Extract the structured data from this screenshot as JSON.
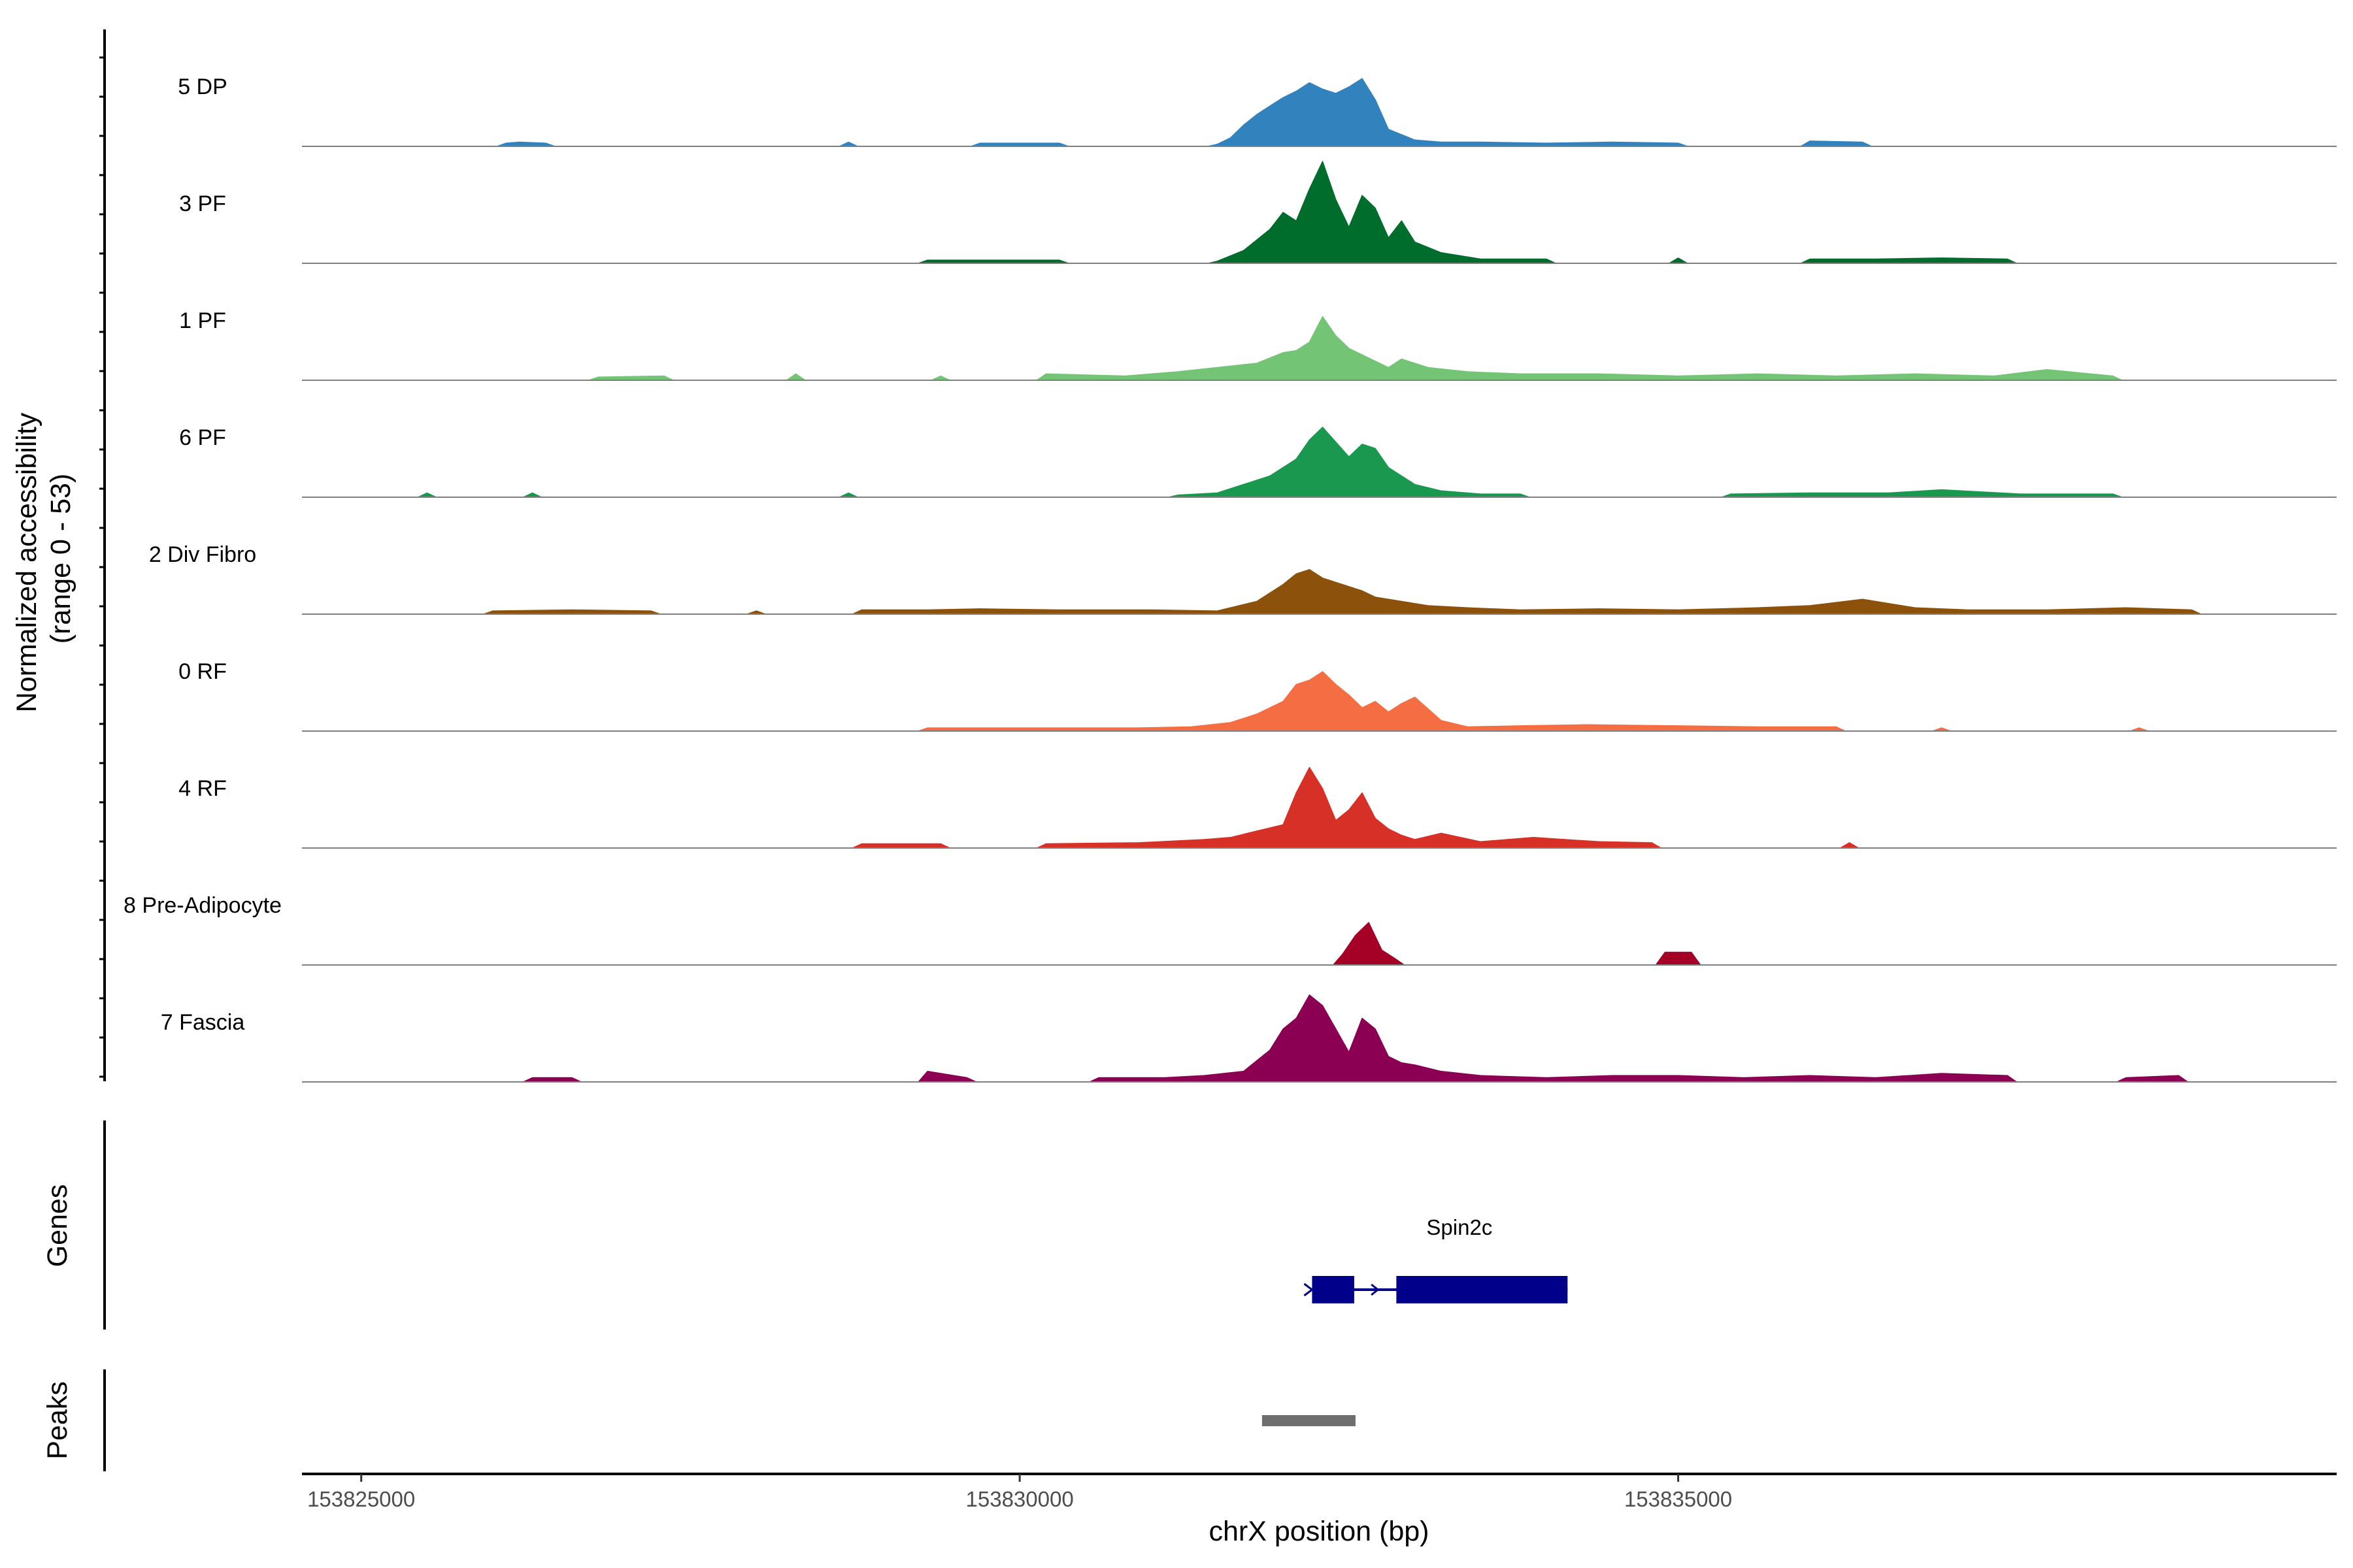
{
  "chart_data": {
    "type": "area",
    "title": "",
    "chromosome": "chrX",
    "xlabel": "chrX position (bp)",
    "xlim": [
      153824550,
      153840000
    ],
    "xticks": [
      153825000,
      153830000,
      153835000
    ],
    "xtick_labels": [
      "153825000",
      "153830000",
      "153835000"
    ],
    "ylabel": "Normalized accessibility",
    "ylabel_range": "(range 0 - 53)",
    "ylim": [
      0,
      53
    ],
    "tracks": [
      {
        "name": "5 DP",
        "color": "#3182bd",
        "positions": [
          153826100,
          153826200,
          153826400,
          153828700,
          153829700,
          153830300,
          153831500,
          153831600,
          153831700,
          153831800,
          153831900,
          153832000,
          153832100,
          153832200,
          153832300,
          153832400,
          153832500,
          153832600,
          153832700,
          153832800,
          153833000,
          153833200,
          153833500,
          153834000,
          153834500,
          153835000,
          153836000,
          153836400
        ],
        "values": [
          1.5,
          2,
          1.5,
          2,
          1.5,
          1.5,
          1,
          4,
          10,
          15,
          19,
          23,
          26,
          30,
          27,
          25,
          28,
          32,
          22,
          8,
          3,
          2,
          2,
          1.5,
          2,
          1.5,
          2.5,
          2
        ]
      },
      {
        "name": "3 PF",
        "color": "#006d2c",
        "positions": [
          153829300,
          153829700,
          153830300,
          153831500,
          153831700,
          153831900,
          153832000,
          153832100,
          153832200,
          153832300,
          153832400,
          153832500,
          153832600,
          153832700,
          153832800,
          153832900,
          153833000,
          153833200,
          153833500,
          153834000,
          153835000,
          153836000,
          153836500,
          153837000,
          153837500
        ],
        "values": [
          1.5,
          1.5,
          1.5,
          1,
          6,
          16,
          24,
          20,
          35,
          48,
          30,
          17,
          32,
          26,
          12,
          20,
          10,
          5,
          2,
          2,
          2.5,
          2,
          2,
          2.5,
          2
        ]
      },
      {
        "name": "1 PF",
        "color": "#74c476",
        "positions": [
          153826800,
          153827300,
          153828300,
          153829400,
          153830200,
          153830800,
          153831200,
          153831500,
          153831800,
          153832000,
          153832100,
          153832200,
          153832300,
          153832400,
          153832500,
          153832600,
          153832700,
          153832800,
          153832900,
          153833100,
          153833400,
          153833800,
          153834400,
          153835000,
          153835600,
          153836200,
          153836800,
          153837400,
          153837800,
          153838300
        ],
        "values": [
          1.5,
          2,
          3,
          2,
          3,
          2,
          4,
          6,
          8,
          13,
          14,
          18,
          30,
          21,
          15,
          12,
          9,
          6,
          10,
          6,
          4,
          3,
          3,
          2,
          3,
          2,
          3,
          2,
          5,
          2
        ]
      },
      {
        "name": "6 PF",
        "color": "#1a9850",
        "positions": [
          153825500,
          153826300,
          153828700,
          153831200,
          153831500,
          153831700,
          153831900,
          153832100,
          153832200,
          153832300,
          153832400,
          153832500,
          153832600,
          153832700,
          153832800,
          153832900,
          153833000,
          153833200,
          153833500,
          153833800,
          153835400,
          153836000,
          153836600,
          153837000,
          153837600,
          153838300
        ],
        "values": [
          2,
          2,
          2,
          1,
          2,
          6,
          10,
          18,
          27,
          33,
          26,
          19,
          25,
          23,
          14,
          10,
          6,
          3,
          1.5,
          1.5,
          1.5,
          2,
          2,
          3.5,
          1.5,
          1.5
        ]
      },
      {
        "name": "2 Div Fibro",
        "color": "#8c510a",
        "positions": [
          153826000,
          153826600,
          153827200,
          153828000,
          153828800,
          153829300,
          153829700,
          153830300,
          153831000,
          153831500,
          153831800,
          153832000,
          153832100,
          153832200,
          153832300,
          153832400,
          153832500,
          153832600,
          153832700,
          153832900,
          153833100,
          153833400,
          153833800,
          153834400,
          153835000,
          153835600,
          153836000,
          153836400,
          153836800,
          153837200,
          153837800,
          153838400,
          153838900
        ],
        "values": [
          1.5,
          2,
          1.5,
          1.5,
          2,
          2,
          2.5,
          2,
          2,
          1.5,
          6,
          14,
          19,
          21,
          17,
          15,
          13,
          11,
          8,
          6,
          4,
          3,
          2,
          2.5,
          2,
          3,
          4,
          7,
          3,
          2,
          2,
          3,
          2
        ]
      },
      {
        "name": "0 RF",
        "color": "#f46d43",
        "positions": [
          153829300,
          153829800,
          153830400,
          153830900,
          153831300,
          153831600,
          153831800,
          153832000,
          153832100,
          153832200,
          153832300,
          153832400,
          153832500,
          153832600,
          153832700,
          153832800,
          153832900,
          153833000,
          153833200,
          153833400,
          153833800,
          153834300,
          153835000,
          153835600,
          153836200,
          153837000,
          153838500
        ],
        "values": [
          1.5,
          1.5,
          1.5,
          1.5,
          2,
          4,
          8,
          14,
          22,
          24,
          28,
          22,
          17,
          11,
          14,
          9,
          13,
          16,
          5,
          2,
          2.5,
          3,
          2.5,
          2,
          2,
          1.5,
          1.5
        ]
      },
      {
        "name": "4 RF",
        "color": "#d73027",
        "positions": [
          153828800,
          153829400,
          153830200,
          153830900,
          153831400,
          153831600,
          153831800,
          153832000,
          153832100,
          153832200,
          153832300,
          153832400,
          153832500,
          153832600,
          153832700,
          153832800,
          153832900,
          153833000,
          153833200,
          153833500,
          153833900,
          153834400,
          153834800,
          153836300
        ],
        "values": [
          2,
          2,
          2,
          2.5,
          4,
          5,
          8,
          11,
          26,
          38,
          28,
          13,
          18,
          26,
          14,
          9,
          6,
          4,
          7,
          3,
          5,
          3,
          2.5,
          2.5
        ]
      },
      {
        "name": "8 Pre-Adipocyte",
        "color": "#a50026",
        "positions": [
          153832450,
          153832550,
          153832650,
          153832750,
          153832850,
          153834900,
          153835000,
          153835100
        ],
        "values": [
          5,
          14,
          20,
          7,
          3,
          6,
          6,
          6
        ]
      },
      {
        "name": "7 Fascia",
        "color": "#8b0052",
        "positions": [
          153826300,
          153826600,
          153829300,
          153829600,
          153830600,
          153831100,
          153831400,
          153831700,
          153831900,
          153832000,
          153832100,
          153832200,
          153832300,
          153832400,
          153832500,
          153832600,
          153832700,
          153832800,
          153832900,
          153833000,
          153833200,
          153833500,
          153834000,
          153834500,
          153835000,
          153835500,
          153836000,
          153836500,
          153837000,
          153837500,
          153838400,
          153838800
        ],
        "values": [
          2,
          2,
          5,
          2,
          2,
          2,
          3,
          5,
          15,
          25,
          30,
          41,
          36,
          25,
          14,
          30,
          25,
          12,
          9,
          8,
          5,
          3,
          2,
          3,
          3,
          2,
          3,
          2,
          4,
          3,
          2,
          3
        ]
      }
    ],
    "genes": [
      {
        "name": "Spin2c",
        "strand": "+",
        "start": 153832220,
        "end": 153834160,
        "exons": [
          [
            153832220,
            153832540
          ],
          [
            153832860,
            153834160
          ]
        ]
      }
    ],
    "peaks": [
      {
        "start": 153831840,
        "end": 153832550
      }
    ],
    "panel_titles": {
      "genes": "Genes",
      "peaks": "Peaks"
    }
  }
}
